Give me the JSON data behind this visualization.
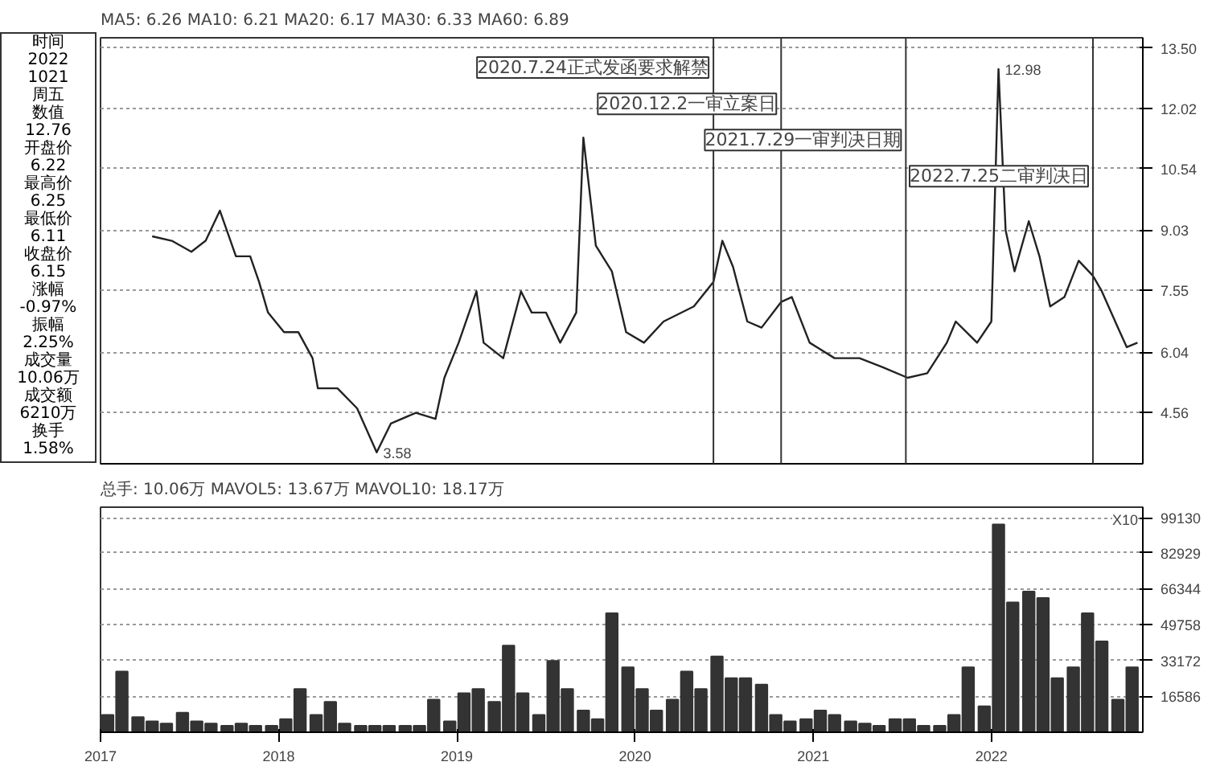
{
  "chart_data": [
    {
      "type": "line",
      "ylabel": null,
      "annotations": [
        "MA5: 6.26  MA10: 6.21  MA20: 6.17  MA30: 6.33  MA60: 6.89",
        "时间",
        "2022",
        "1021",
        "周五",
        "数值",
        "12.76",
        "开盘价",
        "6.22",
        "最高价",
        "6.25",
        "最低价",
        "6.11",
        "收盘价",
        "6.15",
        "涨幅",
        "-0.97%",
        "振幅",
        "2.25%",
        "成交量",
        "10.06万",
        "成交额",
        "6210万",
        "换手",
        "1.58%",
        {
          "text": "12.98",
          "x": 2022.04,
          "y": 12.98
        },
        {
          "text": "3.58",
          "x": 2018.55,
          "y": 3.58
        }
      ],
      "series": [
        {
          "color": "#222222",
          "x": [
            2017.29,
            2017.4,
            2017.51,
            2017.59,
            2017.67,
            2017.76,
            2017.84,
            2017.89,
            2017.94,
            2018.03,
            2018.11,
            2018.19,
            2018.22,
            2018.33,
            2018.44,
            2018.55,
            2018.63,
            2018.77,
            2018.88,
            2018.93,
            2019.01,
            2019.11,
            2019.15,
            2019.26,
            2019.36,
            2019.42,
            2019.5,
            2019.58,
            2019.67,
            2019.71,
            2019.78,
            2019.87,
            2019.95,
            2020.05,
            2020.16,
            2020.33,
            2020.44,
            2020.49,
            2020.55,
            2020.63,
            2020.71,
            2020.82,
            2020.88,
            2020.98,
            2021.12,
            2021.26,
            2021.39,
            2021.53,
            2021.64,
            2021.75,
            2021.8,
            2021.92,
            2022.0,
            2022.04,
            2022.08,
            2022.13,
            2022.21,
            2022.27,
            2022.33,
            2022.41,
            2022.49,
            2022.57,
            2022.62,
            2022.71,
            2022.76,
            2022.82
          ],
          "values": [
            8.88,
            8.77,
            8.5,
            8.77,
            9.51,
            8.39,
            8.39,
            7.76,
            7.01,
            6.53,
            6.53,
            5.89,
            5.15,
            5.15,
            4.66,
            3.58,
            4.29,
            4.55,
            4.4,
            5.41,
            6.27,
            7.53,
            6.27,
            5.89,
            7.53,
            7.01,
            7.01,
            6.27,
            7.01,
            11.3,
            8.65,
            8.02,
            6.53,
            6.27,
            6.79,
            7.16,
            7.76,
            8.77,
            8.13,
            6.79,
            6.64,
            7.27,
            7.39,
            6.27,
            5.89,
            5.89,
            5.67,
            5.41,
            5.52,
            6.27,
            6.79,
            6.27,
            6.79,
            12.98,
            9.03,
            8.02,
            9.25,
            8.39,
            7.16,
            7.39,
            8.28,
            7.91,
            7.53,
            6.64,
            6.16,
            6.27
          ]
        }
      ],
      "xlim": [
        2017.0,
        2022.85
      ],
      "ylim": [
        3.3,
        13.75
      ],
      "yticks": [
        {
          "value": 13.5,
          "label": "13.50"
        },
        12.02,
        10.54,
        9.03,
        7.55,
        6.04,
        4.56
      ],
      "grid": "y",
      "tick_labels": "y",
      "ref_lines": [
        {
          "axis": "x",
          "value": 2020.44,
          "label": "2020.7.24正式发函要求解禁"
        },
        {
          "axis": "x",
          "value": 2020.82,
          "label": "2020.12.2一审立案日"
        },
        {
          "axis": "x",
          "value": 2021.52,
          "label": "2021.7.29一审判决日期"
        },
        {
          "axis": "x",
          "value": 2022.57,
          "label": "2022.7.25二审判决日"
        }
      ]
    },
    {
      "type": "bar",
      "color": "#333333",
      "annotations": [
        "总手: 10.06万  MAVOL5: 13.67万  MAVOL10: 18.17万",
        "X10"
      ],
      "x": [
        2017.04,
        2017.12,
        2017.21,
        2017.29,
        2017.37,
        2017.46,
        2017.54,
        2017.62,
        2017.71,
        2017.79,
        2017.87,
        2017.96,
        2018.04,
        2018.12,
        2018.21,
        2018.29,
        2018.37,
        2018.46,
        2018.54,
        2018.62,
        2018.71,
        2018.79,
        2018.87,
        2018.96,
        2019.04,
        2019.12,
        2019.21,
        2019.29,
        2019.37,
        2019.46,
        2019.54,
        2019.62,
        2019.71,
        2019.79,
        2019.87,
        2019.96,
        2020.04,
        2020.12,
        2020.21,
        2020.29,
        2020.37,
        2020.46,
        2020.54,
        2020.62,
        2020.71,
        2020.79,
        2020.87,
        2020.96,
        2021.04,
        2021.12,
        2021.21,
        2021.29,
        2021.37,
        2021.46,
        2021.54,
        2021.62,
        2021.71,
        2021.79,
        2021.87,
        2021.96,
        2022.04,
        2022.12,
        2022.21,
        2022.29,
        2022.37,
        2022.46,
        2022.54,
        2022.62,
        2022.71,
        2022.79
      ],
      "values": [
        8000,
        28000,
        7000,
        5000,
        4000,
        9000,
        5000,
        4000,
        3000,
        4000,
        3000,
        3000,
        6000,
        20000,
        8000,
        14000,
        4000,
        3000,
        3000,
        3000,
        3000,
        3000,
        15000,
        5000,
        18000,
        20000,
        14000,
        40000,
        18000,
        8000,
        33000,
        20000,
        10000,
        6000,
        55000,
        30000,
        20000,
        10000,
        15000,
        28000,
        20000,
        35000,
        25000,
        25000,
        22000,
        8000,
        5000,
        6000,
        10000,
        8000,
        5000,
        4000,
        3000,
        6000,
        6000,
        3000,
        3000,
        8000,
        30000,
        12000,
        96000,
        60000,
        65000,
        62000,
        25000,
        30000,
        55000,
        42000,
        15000,
        30000
      ],
      "xlim": [
        2017.0,
        2022.85
      ],
      "ylim": [
        0,
        104000
      ],
      "xticks": [
        2017,
        2018,
        2019,
        2020,
        2021,
        2022
      ],
      "yticks": [
        99130,
        82929,
        66344,
        49758,
        33172,
        16586
      ],
      "grid": "y"
    }
  ]
}
